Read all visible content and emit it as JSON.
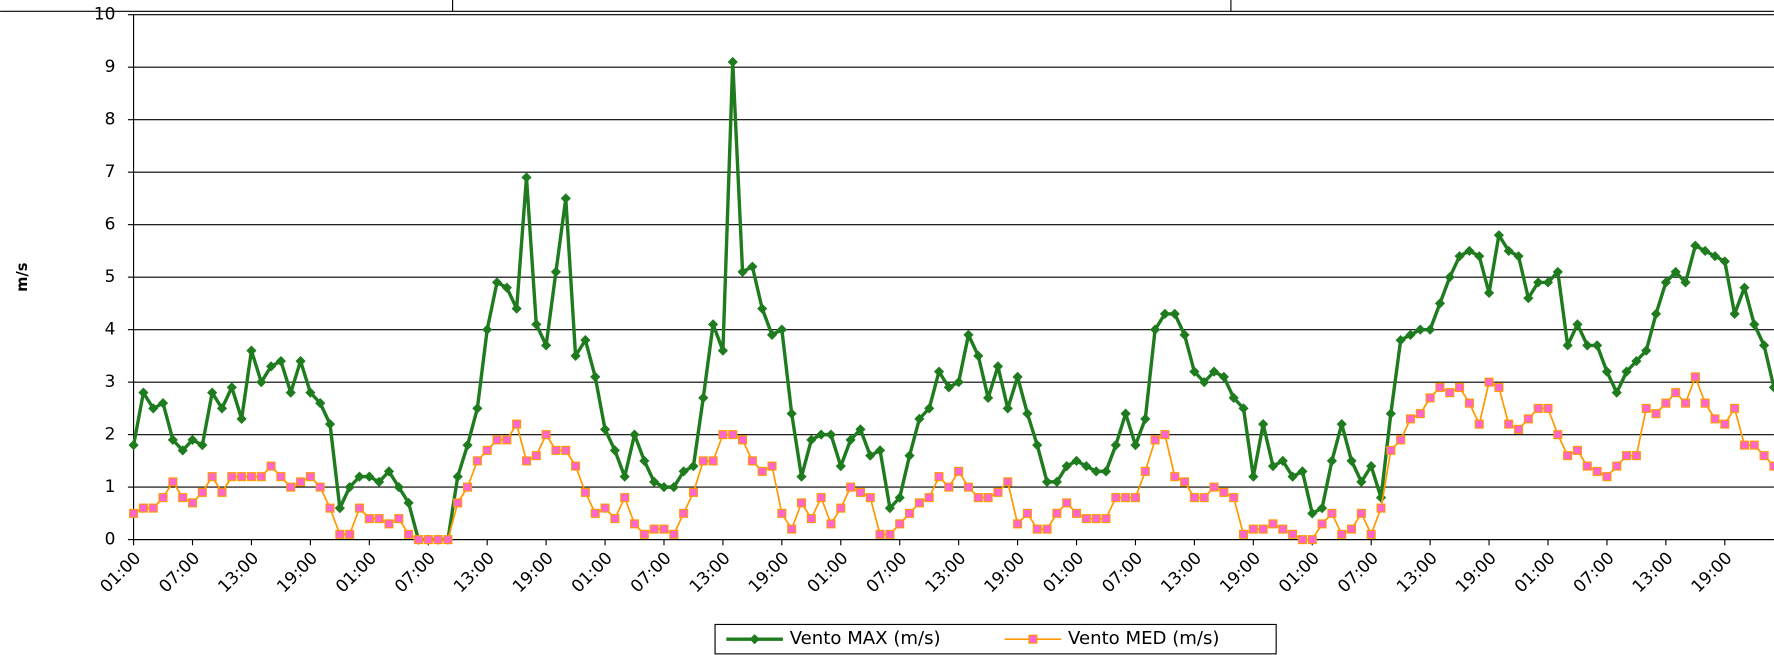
{
  "chart_data": {
    "type": "line",
    "y_label": "m/s",
    "ylim": [
      0,
      10
    ],
    "yticks": [
      0,
      1,
      2,
      3,
      4,
      5,
      6,
      7,
      8,
      9,
      10
    ],
    "grid": true,
    "legend": "bottom",
    "categories": [
      "01:00",
      null,
      null,
      null,
      null,
      null,
      "07:00",
      null,
      null,
      null,
      null,
      null,
      "13:00",
      null,
      null,
      null,
      null,
      null,
      "19:00",
      null,
      null,
      null,
      null,
      null,
      "01:00",
      null,
      null,
      null,
      null,
      null,
      "07:00",
      null,
      null,
      null,
      null,
      null,
      "13:00",
      null,
      null,
      null,
      null,
      null,
      "19:00",
      null,
      null,
      null,
      null,
      null,
      "01:00",
      null,
      null,
      null,
      null,
      null,
      "07:00",
      null,
      null,
      null,
      null,
      null,
      "13:00",
      null,
      null,
      null,
      null,
      null,
      "19:00",
      null,
      null,
      null,
      null,
      null,
      "01:00",
      null,
      null,
      null,
      null,
      null,
      "07:00",
      null,
      null,
      null,
      null,
      null,
      "13:00",
      null,
      null,
      null,
      null,
      null,
      "19:00",
      null,
      null,
      null,
      null,
      null,
      "01:00",
      null,
      null,
      null,
      null,
      null,
      "07:00",
      null,
      null,
      null,
      null,
      null,
      "13:00",
      null,
      null,
      null,
      null,
      null,
      "19:00",
      null,
      null,
      null,
      null,
      null,
      "01:00",
      null,
      null,
      null,
      null,
      null,
      "07:00",
      null,
      null,
      null,
      null,
      null,
      "13:00",
      null,
      null,
      null,
      null,
      null,
      "19:00",
      null,
      null,
      null,
      null,
      null,
      "01:00",
      null,
      null,
      null,
      null,
      null,
      "07:00",
      null,
      null,
      null,
      null,
      null,
      "13:00",
      null,
      null,
      null,
      null,
      null,
      "19:00",
      null,
      null,
      null,
      null,
      null
    ],
    "series": [
      {
        "name": "Vento MAX (m/s)",
        "color": "#1e7b1e",
        "marker": "diamond",
        "values": [
          1.8,
          2.8,
          2.5,
          2.6,
          1.9,
          1.7,
          1.9,
          1.8,
          2.8,
          2.5,
          2.9,
          2.3,
          3.6,
          3.0,
          3.3,
          3.4,
          2.8,
          3.4,
          2.8,
          2.6,
          2.2,
          0.6,
          1.0,
          1.2,
          1.2,
          1.1,
          1.3,
          1.0,
          0.7,
          0,
          0,
          0,
          0,
          1.2,
          1.8,
          2.5,
          4.0,
          4.9,
          4.8,
          4.4,
          6.9,
          4.1,
          3.7,
          5.1,
          6.5,
          3.5,
          3.8,
          3.1,
          2.1,
          1.7,
          1.2,
          2.0,
          1.5,
          1.1,
          1.0,
          1.0,
          1.3,
          1.4,
          2.7,
          4.1,
          3.6,
          9.1,
          5.1,
          5.2,
          4.4,
          3.9,
          4.0,
          2.4,
          1.2,
          1.9,
          2.0,
          2.0,
          1.4,
          1.9,
          2.1,
          1.6,
          1.7,
          0.6,
          0.8,
          1.6,
          2.3,
          2.5,
          3.2,
          2.9,
          3.0,
          3.9,
          3.5,
          2.7,
          3.3,
          2.5,
          3.1,
          2.4,
          1.8,
          1.1,
          1.1,
          1.4,
          1.5,
          1.4,
          1.3,
          1.3,
          1.8,
          2.4,
          1.8,
          2.3,
          4.0,
          4.3,
          4.3,
          3.9,
          3.2,
          3.0,
          3.2,
          3.1,
          2.7,
          2.5,
          1.2,
          2.2,
          1.4,
          1.5,
          1.2,
          1.3,
          0.5,
          0.6,
          1.5,
          2.2,
          1.5,
          1.1,
          1.4,
          0.8,
          2.4,
          3.8,
          3.9,
          4.0,
          4.0,
          4.5,
          5.0,
          5.4,
          5.5,
          5.4,
          4.7,
          5.8,
          5.5,
          5.4,
          4.6,
          4.9,
          4.9,
          5.1,
          3.7,
          4.1,
          3.7,
          3.7,
          3.2,
          2.8,
          3.2,
          3.4,
          3.6,
          4.3,
          4.9,
          5.1,
          4.9,
          5.6,
          5.5,
          5.4,
          5.3,
          4.3,
          4.8,
          4.1,
          3.7,
          2.9
        ]
      },
      {
        "name": "Vento MED (m/s)",
        "color": "#ff9900",
        "marker_color": "#ff66cc",
        "marker": "square",
        "values": [
          0.5,
          0.6,
          0.6,
          0.8,
          1.1,
          0.8,
          0.7,
          0.9,
          1.2,
          0.9,
          1.2,
          1.2,
          1.2,
          1.2,
          1.4,
          1.2,
          1.0,
          1.1,
          1.2,
          1.0,
          0.6,
          0.1,
          0.1,
          0.6,
          0.4,
          0.4,
          0.3,
          0.4,
          0.1,
          0,
          0,
          0,
          0,
          0.7,
          1.0,
          1.5,
          1.7,
          1.9,
          1.9,
          2.2,
          1.5,
          1.6,
          2.0,
          1.7,
          1.7,
          1.4,
          0.9,
          0.5,
          0.6,
          0.4,
          0.8,
          0.3,
          0.1,
          0.2,
          0.2,
          0.1,
          0.5,
          0.9,
          1.5,
          1.5,
          2.0,
          2.0,
          1.9,
          1.5,
          1.3,
          1.4,
          0.5,
          0.2,
          0.7,
          0.4,
          0.8,
          0.3,
          0.6,
          1.0,
          0.9,
          0.8,
          0.1,
          0.1,
          0.3,
          0.5,
          0.7,
          0.8,
          1.2,
          1.0,
          1.3,
          1.0,
          0.8,
          0.8,
          0.9,
          1.1,
          0.3,
          0.5,
          0.2,
          0.2,
          0.5,
          0.7,
          0.5,
          0.4,
          0.4,
          0.4,
          0.8,
          0.8,
          0.8,
          1.3,
          1.9,
          2.0,
          1.2,
          1.1,
          0.8,
          0.8,
          1.0,
          0.9,
          0.8,
          0.1,
          0.2,
          0.2,
          0.3,
          0.2,
          0.1,
          0,
          0,
          0.3,
          0.5,
          0.1,
          0.2,
          0.5,
          0.1,
          0.6,
          1.7,
          1.9,
          2.3,
          2.4,
          2.7,
          2.9,
          2.8,
          2.9,
          2.6,
          2.2,
          3.0,
          2.9,
          2.2,
          2.1,
          2.3,
          2.5,
          2.5,
          2.0,
          1.6,
          1.7,
          1.4,
          1.3,
          1.2,
          1.4,
          1.6,
          1.6,
          2.5,
          2.4,
          2.6,
          2.8,
          2.6,
          3.1,
          2.6,
          2.3,
          2.2,
          2.5,
          1.8,
          1.8,
          1.6,
          1.4
        ]
      }
    ]
  }
}
